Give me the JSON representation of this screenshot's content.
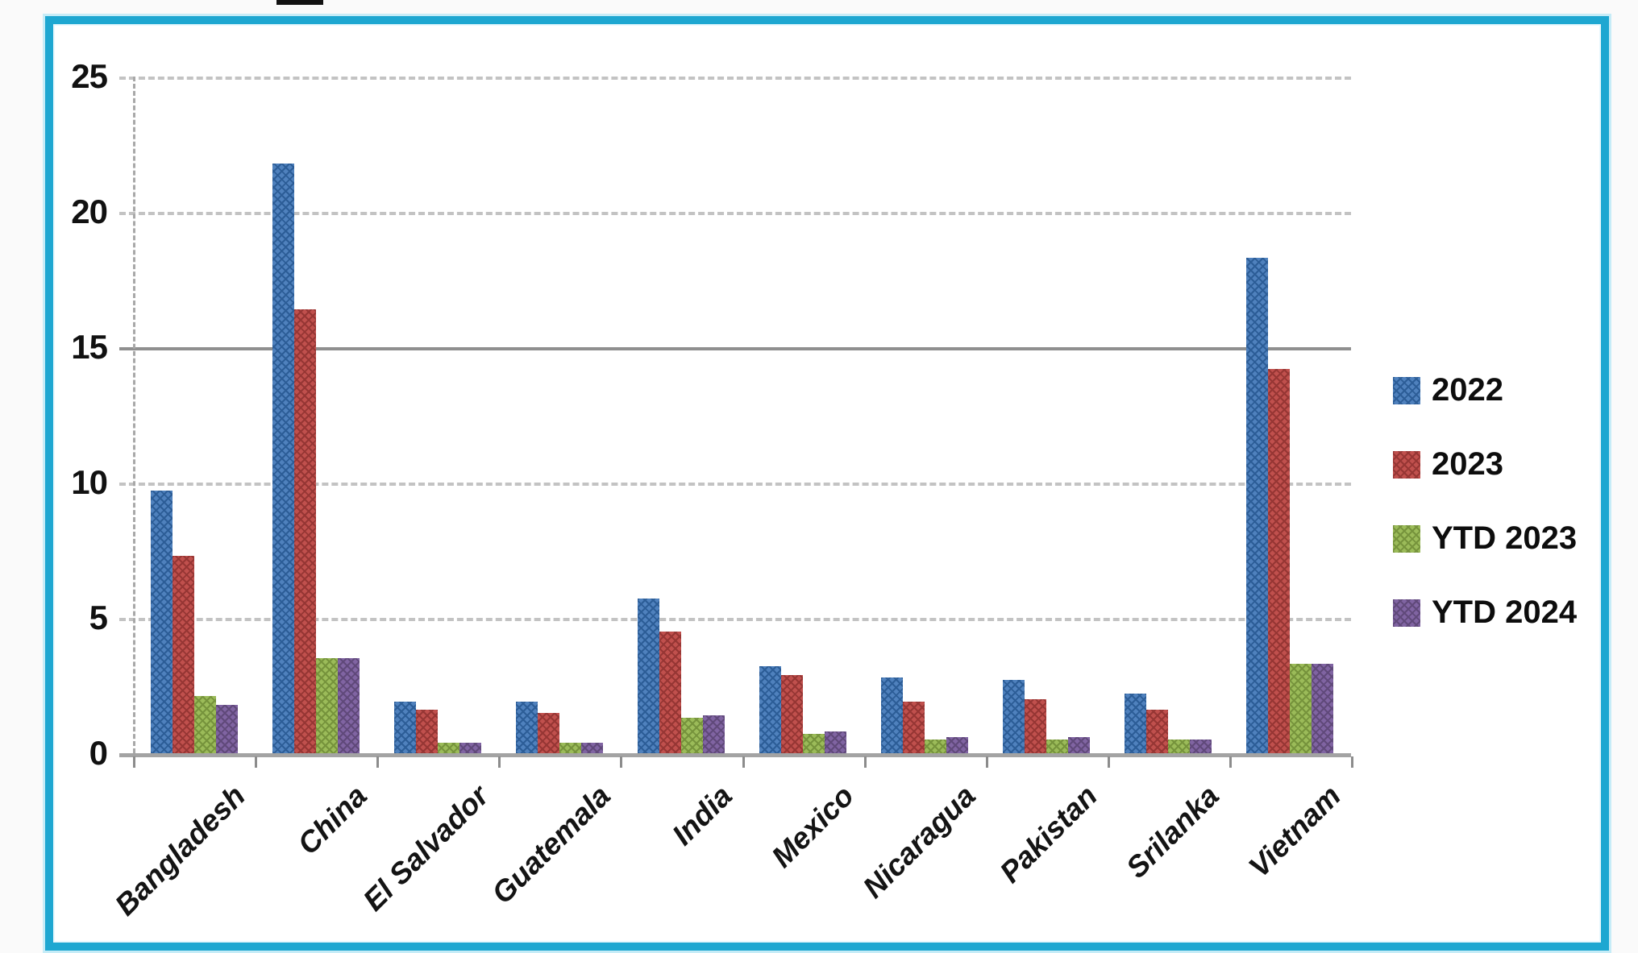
{
  "frame": {
    "border_color": "#1ea7d1"
  },
  "artifact": {
    "cropped_title_fragment_present": true
  },
  "chart_data": {
    "type": "bar",
    "title": "",
    "xlabel": "",
    "ylabel": "",
    "ylim": [
      0,
      25
    ],
    "yticks": [
      0,
      5,
      10,
      15,
      20,
      25
    ],
    "grid": "horizontal; dashed at 5,10,20,25; solid at 15; dash-dot vertical y-axis",
    "legend_position": "right",
    "categories": [
      "Bangladesh",
      "China",
      "El Salvador",
      "Guatemala",
      "India",
      "Mexico",
      "Nicaragua",
      "Pakistan",
      "Srilanka",
      "Vietnam"
    ],
    "series": [
      {
        "name": "2022",
        "color": "#4f81bd",
        "color_dark": "#2c5d97",
        "values": [
          9.7,
          21.8,
          1.9,
          1.9,
          5.7,
          3.2,
          2.8,
          2.7,
          2.2,
          18.3
        ]
      },
      {
        "name": "2023",
        "color": "#c0504d",
        "color_dark": "#963634",
        "values": [
          7.3,
          16.4,
          1.6,
          1.5,
          4.5,
          2.9,
          1.9,
          2.0,
          1.6,
          14.2
        ]
      },
      {
        "name": "YTD 2023",
        "color": "#9bbb59",
        "color_dark": "#76933c",
        "values": [
          2.1,
          3.5,
          0.4,
          0.4,
          1.3,
          0.7,
          0.5,
          0.5,
          0.5,
          3.3
        ]
      },
      {
        "name": "YTD 2024",
        "color": "#8064a2",
        "color_dark": "#60497a",
        "values": [
          1.8,
          3.5,
          0.4,
          0.4,
          1.4,
          0.8,
          0.6,
          0.6,
          0.5,
          3.3
        ]
      }
    ]
  }
}
